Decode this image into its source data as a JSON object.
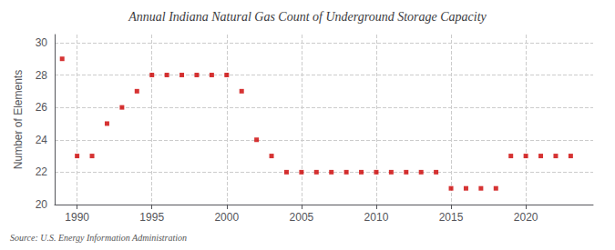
{
  "chart_data": {
    "type": "scatter",
    "title": "Annual Indiana Natural Gas Count of Underground Storage Capacity",
    "ylabel": "Number of Elements",
    "annotation": "Source: U.S. Energy Information Administration",
    "x": [
      1989,
      1990,
      1991,
      1992,
      1993,
      1994,
      1995,
      1996,
      1997,
      1998,
      1999,
      2000,
      2001,
      2002,
      2003,
      2004,
      2005,
      2006,
      2007,
      2008,
      2009,
      2010,
      2011,
      2012,
      2013,
      2014,
      2015,
      2016,
      2017,
      2018,
      2019,
      2020,
      2021,
      2022,
      2023
    ],
    "values": [
      29,
      23,
      23,
      25,
      26,
      27,
      28,
      28,
      28,
      28,
      28,
      28,
      27,
      24,
      23,
      22,
      22,
      22,
      22,
      22,
      22,
      22,
      22,
      22,
      22,
      22,
      21,
      21,
      21,
      21,
      23,
      23,
      23,
      23,
      23
    ],
    "color": "#cc0000",
    "marker": "square",
    "xlim": [
      1988.5,
      2024.5
    ],
    "xticks": [
      1990,
      1995,
      2000,
      2005,
      2010,
      2015,
      2020
    ],
    "ylim": [
      20,
      30.5
    ],
    "yticks": [
      20,
      22,
      24,
      26,
      28,
      30
    ],
    "grid": true
  }
}
